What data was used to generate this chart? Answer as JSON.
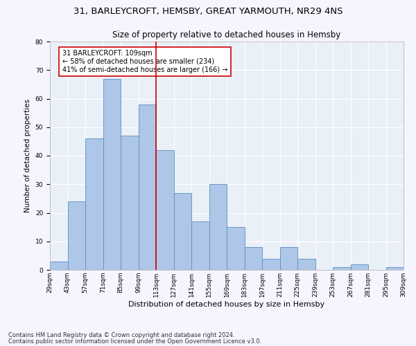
{
  "title1": "31, BARLEYCROFT, HEMSBY, GREAT YARMOUTH, NR29 4NS",
  "title2": "Size of property relative to detached houses in Hemsby",
  "xlabel": "Distribution of detached houses by size in Hemsby",
  "ylabel": "Number of detached properties",
  "bin_labels": [
    "29sqm",
    "43sqm",
    "57sqm",
    "71sqm",
    "85sqm",
    "99sqm",
    "113sqm",
    "127sqm",
    "141sqm",
    "155sqm",
    "169sqm",
    "183sqm",
    "197sqm",
    "211sqm",
    "225sqm",
    "239sqm",
    "253sqm",
    "267sqm",
    "281sqm",
    "295sqm",
    "309sqm"
  ],
  "bar_values": [
    3,
    24,
    46,
    67,
    47,
    58,
    42,
    27,
    17,
    30,
    15,
    8,
    4,
    8,
    4,
    0,
    1,
    2,
    0,
    1
  ],
  "bar_color": "#aec6e8",
  "bar_edge_color": "#5a8fc0",
  "vline_x": 5.5,
  "vline_color": "#cc0000",
  "annotation_text": "31 BARLEYCROFT: 109sqm\n← 58% of detached houses are smaller (234)\n41% of semi-detached houses are larger (166) →",
  "annotation_box_color": "#ffffff",
  "annotation_box_edge": "#cc0000",
  "ylim": [
    0,
    80
  ],
  "yticks": [
    0,
    10,
    20,
    30,
    40,
    50,
    60,
    70,
    80
  ],
  "footer1": "Contains HM Land Registry data © Crown copyright and database right 2024.",
  "footer2": "Contains public sector information licensed under the Open Government Licence v3.0.",
  "bg_color": "#eaf0f8",
  "fig_bg_color": "#f5f5ff",
  "title1_fontsize": 9.5,
  "title2_fontsize": 8.5,
  "xlabel_fontsize": 8,
  "ylabel_fontsize": 7.5,
  "tick_fontsize": 6.5,
  "annotation_fontsize": 7,
  "footer_fontsize": 6
}
